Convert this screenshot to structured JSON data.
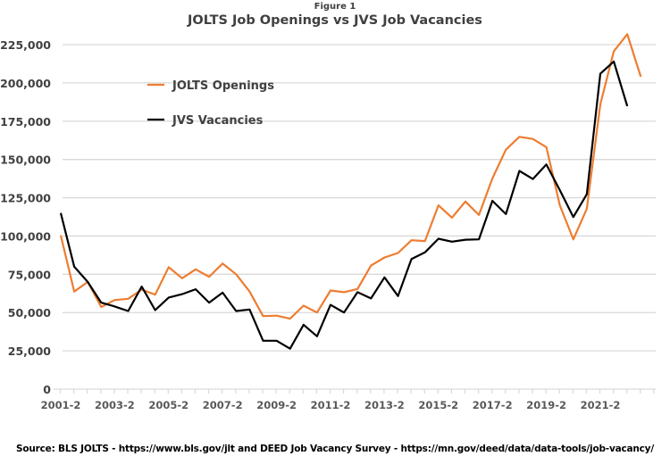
{
  "figure_label": "Figure 1",
  "source": "Source: BLS JOLTS - https://www.bls.gov/jlt and DEED Job Vacancy Survey - https://mn.gov/deed/data/data-tools/job-vacancy/",
  "chart_data": {
    "type": "line",
    "title": "JOLTS Job Openings vs JVS Job Vacancies",
    "xlabel": "",
    "ylabel": "",
    "ylim": [
      0,
      225000
    ],
    "yticks": [
      "0",
      "25,000",
      "50,000",
      "75,000",
      "100,000",
      "125,000",
      "150,000",
      "175,000",
      "200,000",
      "225,000"
    ],
    "xtick_labels": [
      "2001-2",
      "2003-2",
      "2005-2",
      "2007-2",
      "2009-2",
      "2011-2",
      "2013-2",
      "2015-2",
      "2017-2",
      "2019-2",
      "2021-2"
    ],
    "grid": "horizontal",
    "legend_position": "top-left",
    "categories": [
      "2001-2",
      "2001-4",
      "2002-2",
      "2002-4",
      "2003-2",
      "2003-4",
      "2004-2",
      "2004-4",
      "2005-2",
      "2005-4",
      "2006-2",
      "2006-4",
      "2007-2",
      "2007-4",
      "2008-2",
      "2008-4",
      "2009-2",
      "2009-4",
      "2010-2",
      "2010-4",
      "2011-2",
      "2011-4",
      "2012-2",
      "2012-4",
      "2013-2",
      "2013-4",
      "2014-2",
      "2014-4",
      "2015-2",
      "2015-4",
      "2016-2",
      "2016-4",
      "2017-2",
      "2017-4",
      "2018-2",
      "2018-4",
      "2019-2",
      "2019-4",
      "2020-2",
      "2020-4",
      "2021-2",
      "2021-4",
      "2022-2",
      "2022-4"
    ],
    "series": [
      {
        "name": "JOLTS Openings",
        "color": "#ED7D31",
        "values": [
          100500,
          63700,
          70000,
          53600,
          58200,
          59000,
          65000,
          61700,
          79600,
          72400,
          78200,
          73400,
          82000,
          75000,
          63700,
          47700,
          48000,
          46000,
          54500,
          50000,
          64400,
          63300,
          65400,
          80700,
          86000,
          88900,
          97200,
          96700,
          120000,
          112000,
          122500,
          113700,
          137600,
          156400,
          164800,
          163400,
          158000,
          120000,
          97800,
          117800,
          186000,
          220700,
          231800,
          204000
        ]
      },
      {
        "name": "JVS Vacancies",
        "color": "#000000",
        "values": [
          115000,
          80000,
          70000,
          56500,
          54000,
          51000,
          67000,
          51600,
          59800,
          62000,
          65200,
          56500,
          63000,
          51000,
          52000,
          31600,
          31600,
          26400,
          42000,
          34500,
          55000,
          50000,
          63300,
          59200,
          73000,
          60800,
          85000,
          89300,
          98200,
          96300,
          97600,
          97800,
          123000,
          114300,
          142500,
          137200,
          146700,
          129900,
          112400,
          127300,
          206000,
          214000,
          184800,
          null
        ]
      }
    ]
  }
}
